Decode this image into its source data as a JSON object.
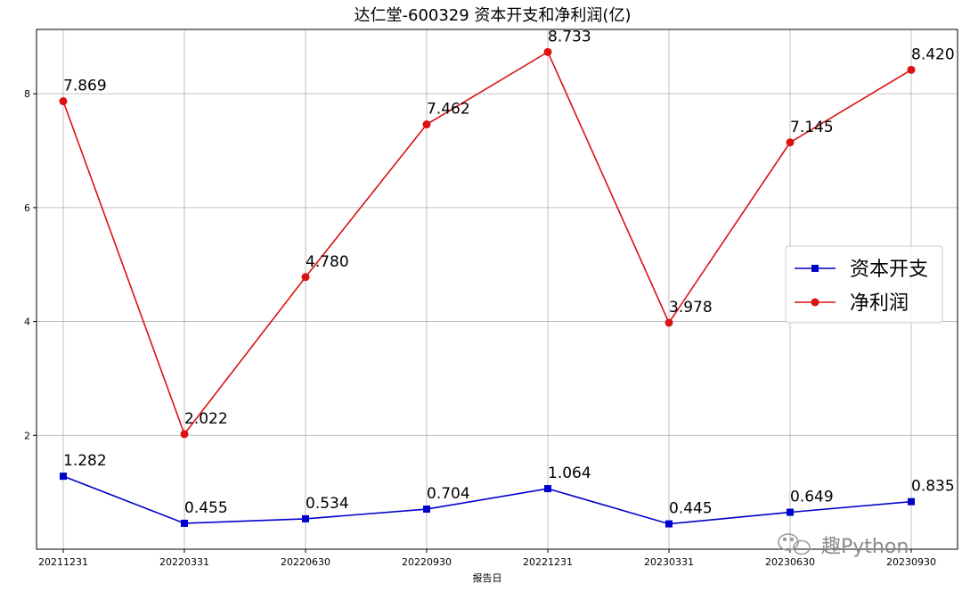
{
  "chart_data": {
    "type": "line",
    "title": "达仁堂-600329 资本开支和净利润(亿)",
    "xlabel": "报告日",
    "ylabel": "",
    "categories": [
      "20211231",
      "20220331",
      "20220630",
      "20220930",
      "20221231",
      "20230331",
      "20230630",
      "20230930"
    ],
    "ylim": [
      0,
      9.13
    ],
    "yticks": [
      2,
      4,
      6,
      8
    ],
    "grid": true,
    "legend_position": "center-right",
    "series": [
      {
        "name": "资本开支",
        "color": "#0000cc",
        "marker": "square",
        "values": [
          1.282,
          0.455,
          0.534,
          0.704,
          1.064,
          0.445,
          0.649,
          0.835
        ],
        "labels": [
          "1.282",
          "0.455",
          "0.534",
          "0.704",
          "1.064",
          "0.445",
          "0.649",
          "0.835"
        ]
      },
      {
        "name": "净利润",
        "color": "#dd1111",
        "marker": "circle",
        "values": [
          7.869,
          2.022,
          4.78,
          7.462,
          8.733,
          3.978,
          7.145,
          8.42
        ],
        "labels": [
          "7.869",
          "2.022",
          "4.780",
          "7.462",
          "8.733",
          "3.978",
          "7.145",
          "8.420"
        ]
      }
    ]
  },
  "watermark": {
    "text": "趣Python",
    "icon": "wechat-icon"
  }
}
